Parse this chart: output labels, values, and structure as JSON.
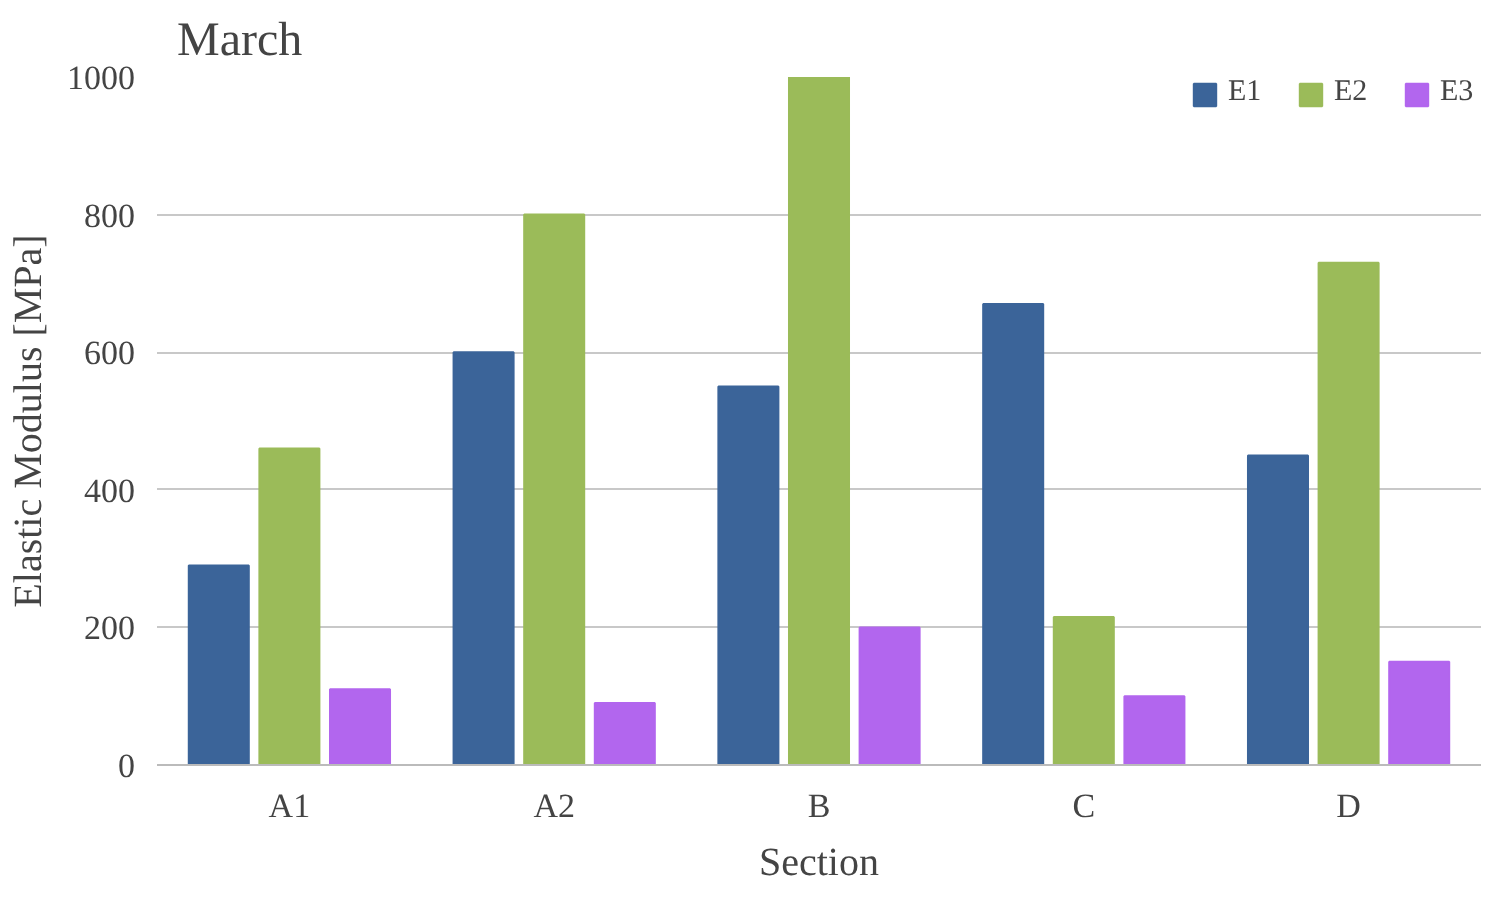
{
  "chart_data": {
    "type": "bar",
    "title": "March",
    "xlabel": "Section",
    "ylabel": "Elastic Modulus [MPa]",
    "categories": [
      "A1",
      "A2",
      "B",
      "C",
      "D"
    ],
    "series": [
      {
        "name": "E1",
        "color": "#3b6499",
        "values": [
          290,
          600,
          550,
          670,
          450
        ]
      },
      {
        "name": "E2",
        "color": "#9bbb59",
        "values": [
          460,
          800,
          1000,
          215,
          730
        ]
      },
      {
        "name": "E3",
        "color": "#b266ee",
        "values": [
          110,
          90,
          200,
          100,
          150
        ]
      }
    ],
    "ylim": [
      0,
      1000
    ],
    "yticks": [
      0,
      200,
      400,
      600,
      800,
      1000
    ],
    "grid": "y",
    "legend": "top right"
  }
}
